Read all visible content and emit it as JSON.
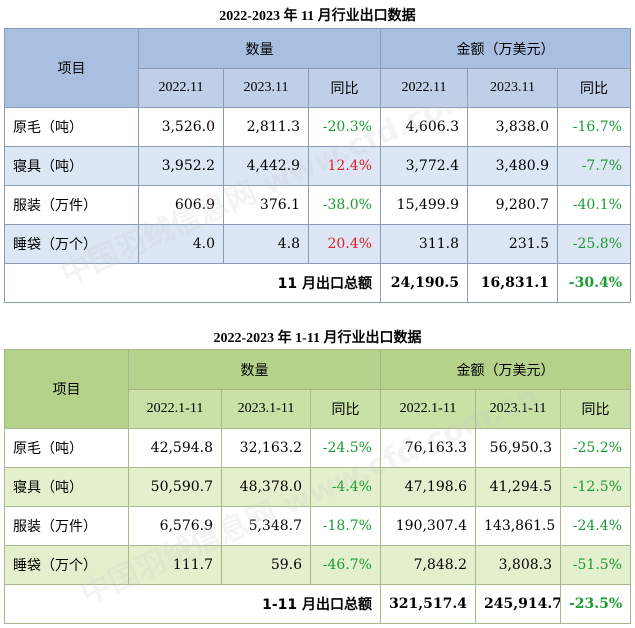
{
  "table1": {
    "title": "2022-2023 年 11 月行业出口数据",
    "header": {
      "item": "项目",
      "qty": "数量",
      "amount": "金额（万美元）",
      "cols": [
        "2022.11",
        "2023.11",
        "同比",
        "2022.11",
        "2023.11",
        "同比"
      ]
    },
    "rows": [
      {
        "label": "原毛（吨）",
        "v": [
          "3,526.0",
          "2,811.3",
          "-20.3%",
          "4,606.3",
          "3,838.0",
          "-16.7%"
        ]
      },
      {
        "label": "寝具（吨）",
        "v": [
          "3,952.2",
          "4,442.9",
          "12.4%",
          "3,772.4",
          "3,480.9",
          "-7.7%"
        ]
      },
      {
        "label": "服装（万件）",
        "v": [
          "606.9",
          "376.1",
          "-38.0%",
          "15,499.9",
          "9,280.7",
          "-40.1%"
        ]
      },
      {
        "label": "睡袋（万个）",
        "v": [
          "4.0",
          "4.8",
          "20.4%",
          "311.8",
          "231.5",
          "-25.8%"
        ]
      }
    ],
    "total": {
      "label": "11 月出口总额",
      "v": [
        "24,190.5",
        "16,831.1",
        "-30.4%"
      ]
    }
  },
  "table2": {
    "title": "2022-2023 年 1-11 月行业出口数据",
    "header": {
      "item": "项目",
      "qty": "数量",
      "amount": "金额（万美元）",
      "cols": [
        "2022.1-11",
        "2023.1-11",
        "同比",
        "2022.1-11",
        "2023.1-11",
        "同比"
      ]
    },
    "rows": [
      {
        "label": "原毛（吨）",
        "v": [
          "42,594.8",
          "32,163.2",
          "-24.5%",
          "76,163.3",
          "56,950.3",
          "-25.2%"
        ]
      },
      {
        "label": "寝具（吨）",
        "v": [
          "50,590.7",
          "48,378.0",
          "-4.4%",
          "47,198.6",
          "41,294.5",
          "-12.5%"
        ]
      },
      {
        "label": "服装（万件）",
        "v": [
          "6,576.9",
          "5,348.7",
          "-18.7%",
          "190,307.4",
          "143,861.5",
          "-24.4%"
        ]
      },
      {
        "label": "睡袋（万个）",
        "v": [
          "111.7",
          "59.6",
          "-46.7%",
          "7,848.2",
          "3,808.3",
          "-51.5%"
        ]
      }
    ],
    "total": {
      "label": "1-11 月出口总额",
      "v": [
        "321,517.4",
        "245,914.7",
        "-23.5%"
      ]
    }
  },
  "watermark": "中国羽绒信息网 www.cfd.com.cn",
  "colors": {
    "positive": "#e0202a",
    "negative": "#1a9a33"
  }
}
